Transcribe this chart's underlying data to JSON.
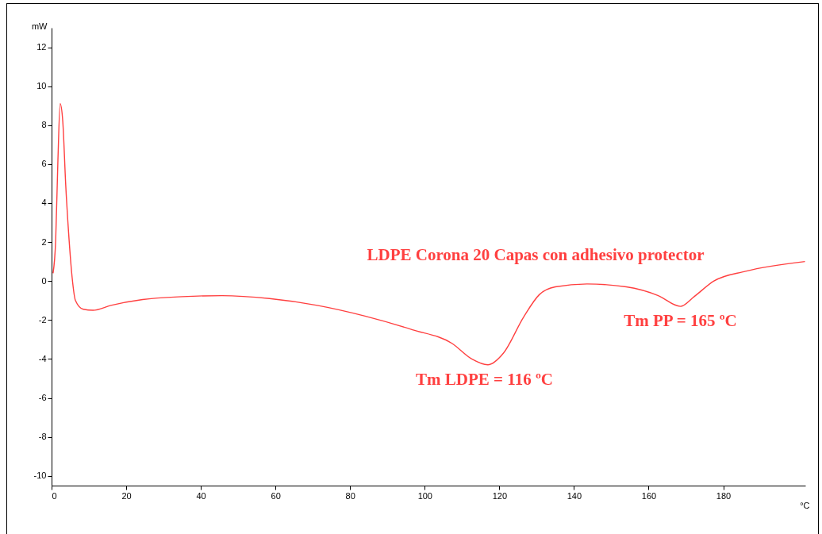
{
  "chart_data": {
    "type": "line",
    "xlabel": "°C",
    "ylabel": "mW",
    "xlim": [
      0,
      202
    ],
    "xticks": [
      0,
      20,
      40,
      60,
      80,
      100,
      120,
      140,
      160,
      180
    ],
    "ylim": [
      -10.5,
      13
    ],
    "yticks": [
      -10,
      -8,
      -6,
      -4,
      -2,
      0,
      2,
      4,
      6,
      8,
      10,
      12
    ],
    "grid": false,
    "legend": false,
    "marker": "none",
    "line_style": "solid",
    "series": [
      {
        "color": "#ff4040",
        "x": [
          0.4,
          1.1,
          1.7,
          2.3,
          3.0,
          3.8,
          4.7,
          5.5,
          6.4,
          8.5,
          11.1,
          15.9,
          24.4,
          35,
          45.7,
          58.4,
          71.2,
          84,
          96.7,
          107.3,
          112.6,
          116.9,
          121.1,
          126.5,
          130.7,
          135,
          143.5,
          154,
          162.6,
          168.5,
          172.2,
          177.5,
          186,
          201.9
        ],
        "values": [
          0.4,
          2.1,
          6.2,
          9.1,
          8.2,
          4.9,
          2.1,
          0.2,
          -1.0,
          -1.45,
          -1.5,
          -1.25,
          -0.95,
          -0.8,
          -0.75,
          -0.9,
          -1.25,
          -1.8,
          -2.5,
          -3.2,
          -4.0,
          -4.3,
          -3.7,
          -1.85,
          -0.7,
          -0.3,
          -0.15,
          -0.3,
          -0.75,
          -1.3,
          -0.8,
          0,
          0.5,
          1.0
        ]
      }
    ],
    "annotations": [
      "LDPE Corona 20 Capas con adhesivo protector",
      {
        "text": "Tm LDPE = 116 ºC",
        "x": 116,
        "y": -4.3
      },
      {
        "text": "Tm PP = 165 ºC",
        "x": 168.5,
        "y": -1.3
      }
    ]
  }
}
